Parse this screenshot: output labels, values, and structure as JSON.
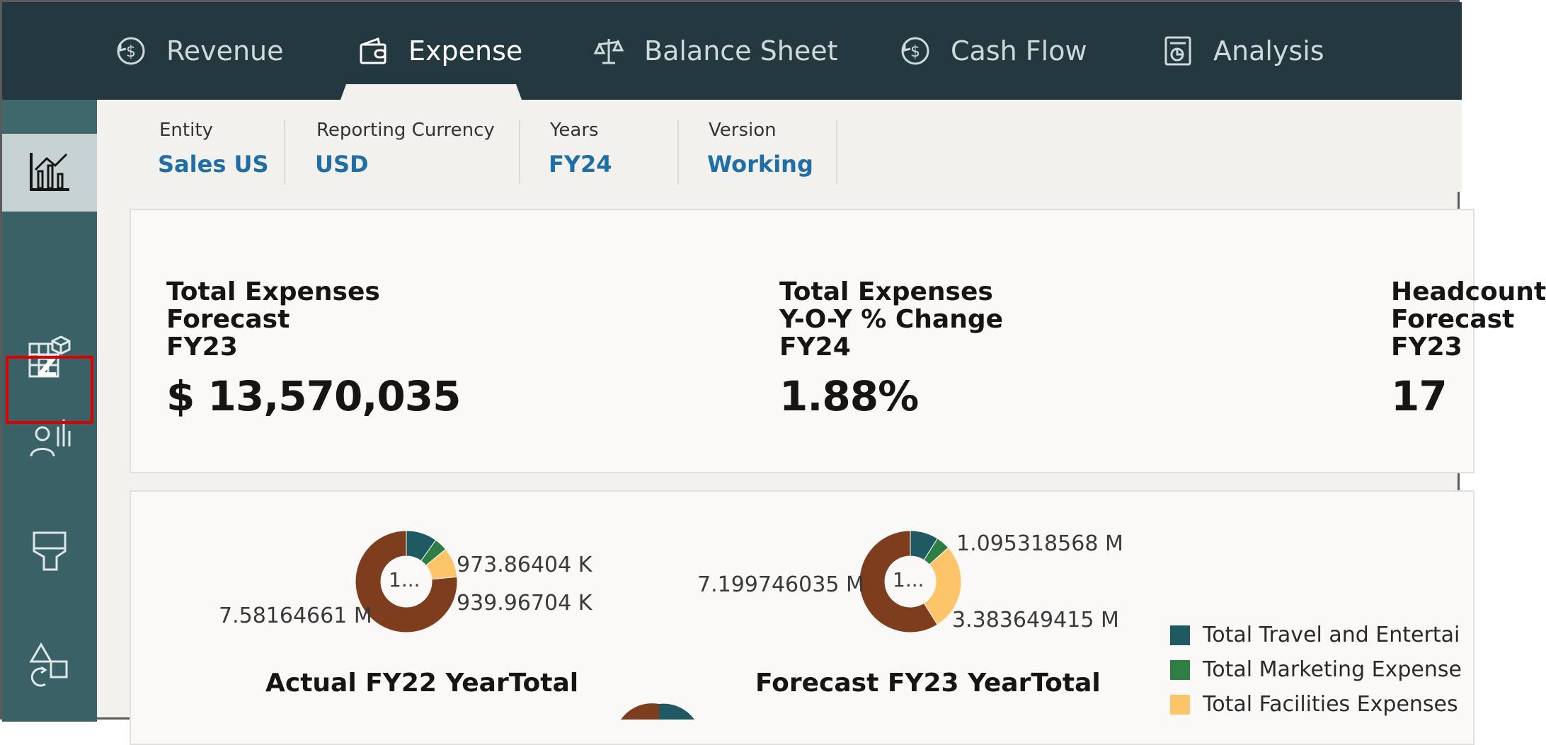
{
  "topnav": {
    "tabs": [
      {
        "label": "Revenue",
        "icon": "revenue-icon",
        "active": false
      },
      {
        "label": "Expense",
        "icon": "wallet-icon",
        "active": true
      },
      {
        "label": "Balance Sheet",
        "icon": "balance-scale-icon",
        "active": false
      },
      {
        "label": "Cash Flow",
        "icon": "cash-flow-icon",
        "active": false
      },
      {
        "label": "Analysis",
        "icon": "analysis-icon",
        "active": false
      }
    ]
  },
  "rail": {
    "items": [
      {
        "icon": "bar-chart-icon",
        "active": true
      },
      {
        "icon": "grid-cube-icon",
        "active": false,
        "badge": "Z",
        "highlighted": true
      },
      {
        "icon": "user-chart-icon",
        "active": false
      },
      {
        "icon": "funnel-icon",
        "active": false
      },
      {
        "icon": "shapes-icon",
        "active": false
      }
    ]
  },
  "filters": [
    {
      "label": "Entity",
      "value": "Sales US"
    },
    {
      "label": "Reporting Currency",
      "value": "USD"
    },
    {
      "label": "Years",
      "value": "FY24"
    },
    {
      "label": "Version",
      "value": "Working"
    }
  ],
  "kpis": [
    {
      "line1": "Total Expenses",
      "line2": "Forecast",
      "line3": "FY23",
      "value": "$ 13,570,035"
    },
    {
      "line1": "Total Expenses",
      "line2": "Y-O-Y % Change",
      "line3": "FY24",
      "value": "1.88%"
    },
    {
      "line1": "Headcount",
      "line2": "Forecast",
      "line3": "FY23",
      "value": "17"
    }
  ],
  "colors": {
    "nav_bg": "#23393f",
    "rail_bg": "#3a6266",
    "link_blue": "#1f6ea8",
    "highlight_red": "#e00000",
    "travel": "#1f5a63",
    "marketing": "#2e7d45",
    "facilities": "#fdc46a",
    "other": "#7e3e1e"
  },
  "chart_data": [
    {
      "type": "pie",
      "title": "Actual FY22 YearTotal",
      "center_label": "1...",
      "slices": [
        {
          "label": "973.86404 K",
          "value": 973864.04,
          "color": "#1f5a63"
        },
        {
          "label": "",
          "value": 420000,
          "color": "#2e7d45"
        },
        {
          "label": "939.96704 K",
          "value": 939967.04,
          "color": "#fdc46a"
        },
        {
          "label": "7.58164661 M",
          "value": 7581646.61,
          "color": "#7e3e1e"
        }
      ]
    },
    {
      "type": "pie",
      "title": "Forecast FY23 YearTotal",
      "center_label": "1...",
      "slices": [
        {
          "label": "1.095318568 M",
          "value": 1095318.568,
          "color": "#1f5a63"
        },
        {
          "label": "",
          "value": 540000,
          "color": "#2e7d45"
        },
        {
          "label": "3.383649415 M",
          "value": 3383649.415,
          "color": "#fdc46a"
        },
        {
          "label": "7.199746035 M",
          "value": 7199746.035,
          "color": "#7e3e1e"
        }
      ]
    }
  ],
  "legend": [
    {
      "label": "Total Travel and Entertai",
      "color": "#1f5a63"
    },
    {
      "label": "Total Marketing Expense",
      "color": "#2e7d45"
    },
    {
      "label": "Total Facilities Expenses",
      "color": "#fdc46a"
    }
  ]
}
